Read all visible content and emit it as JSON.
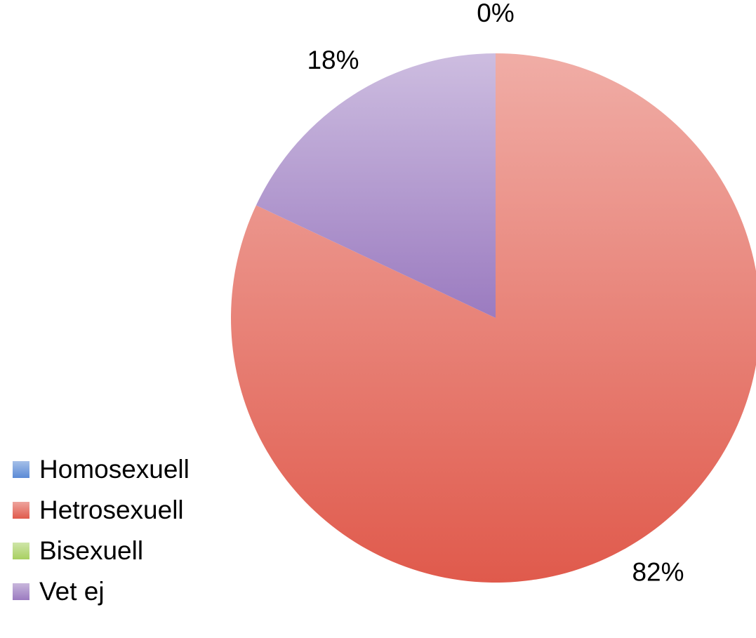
{
  "chart_data": {
    "type": "pie",
    "title": "",
    "categories": [
      "Homosexuell",
      "Hetrosexuell",
      "Bisexuell",
      "Vet ej"
    ],
    "values": [
      0,
      82,
      0,
      18
    ],
    "data_labels": [
      "0%",
      "82%",
      "",
      "18%"
    ],
    "colors": [
      "#5b8ad6",
      "#e05a4c",
      "#a8d060",
      "#9b7bc0"
    ],
    "legend_position": "bottom-left"
  }
}
